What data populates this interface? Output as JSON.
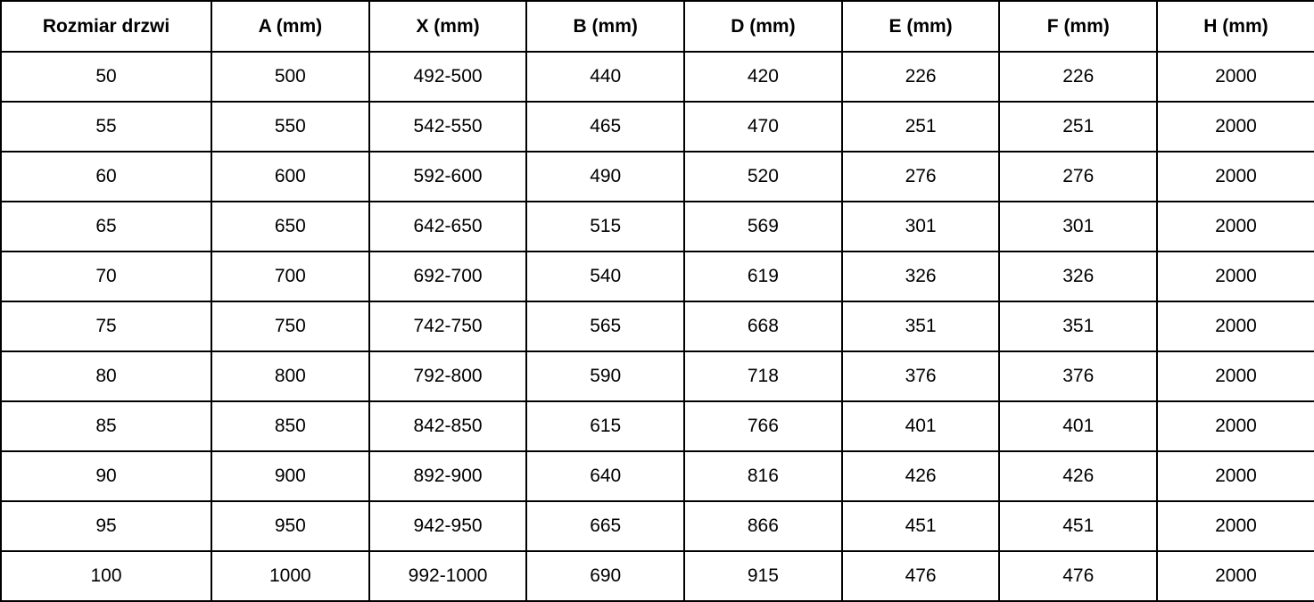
{
  "table": {
    "name": "door-dimensions-table",
    "headers": [
      "Rozmiar drzwi",
      "A (mm)",
      "X (mm)",
      "B (mm)",
      "D (mm)",
      "E (mm)",
      "F (mm)",
      "H (mm)"
    ],
    "rows": [
      [
        "50",
        "500",
        "492-500",
        "440",
        "420",
        "226",
        "226",
        "2000"
      ],
      [
        "55",
        "550",
        "542-550",
        "465",
        "470",
        "251",
        "251",
        "2000"
      ],
      [
        "60",
        "600",
        "592-600",
        "490",
        "520",
        "276",
        "276",
        "2000"
      ],
      [
        "65",
        "650",
        "642-650",
        "515",
        "569",
        "301",
        "301",
        "2000"
      ],
      [
        "70",
        "700",
        "692-700",
        "540",
        "619",
        "326",
        "326",
        "2000"
      ],
      [
        "75",
        "750",
        "742-750",
        "565",
        "668",
        "351",
        "351",
        "2000"
      ],
      [
        "80",
        "800",
        "792-800",
        "590",
        "718",
        "376",
        "376",
        "2000"
      ],
      [
        "85",
        "850",
        "842-850",
        "615",
        "766",
        "401",
        "401",
        "2000"
      ],
      [
        "90",
        "900",
        "892-900",
        "640",
        "816",
        "426",
        "426",
        "2000"
      ],
      [
        "95",
        "950",
        "942-950",
        "665",
        "866",
        "451",
        "451",
        "2000"
      ],
      [
        "100",
        "1000",
        "992-1000",
        "690",
        "915",
        "476",
        "476",
        "2000"
      ]
    ],
    "colors": {
      "border": "#000000",
      "text": "#000000",
      "background": "#ffffff"
    }
  }
}
